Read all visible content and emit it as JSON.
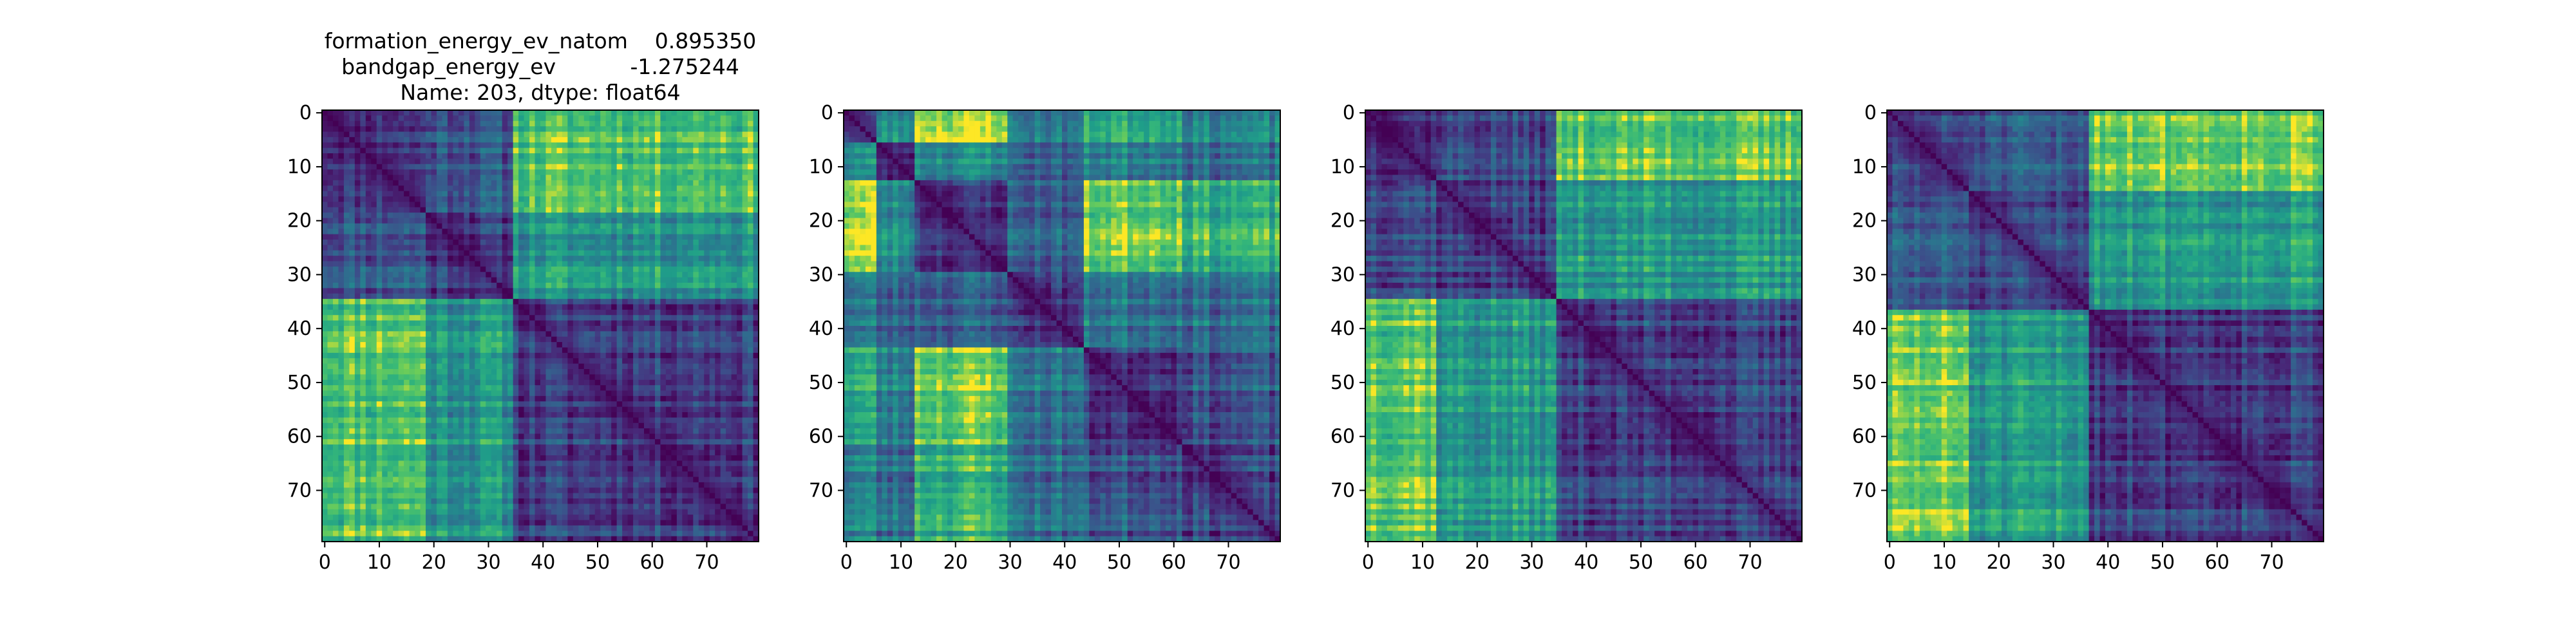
{
  "chart_data": [
    {
      "type": "heatmap",
      "title_lines": [
        "formation_energy_ev_natom    0.895350",
        "bandgap_energy_ev           -1.275244",
        "Name: 203, dtype: float64"
      ],
      "size": 80,
      "xlim": [
        0,
        79
      ],
      "ylim": [
        79,
        0
      ],
      "xticks": [
        0,
        10,
        20,
        30,
        40,
        50,
        60,
        70
      ],
      "yticks": [
        0,
        10,
        20,
        30,
        40,
        50,
        60,
        70
      ],
      "colormap": "viridis",
      "blocks": [
        0,
        19,
        35,
        80
      ],
      "block_levels": [
        [
          0.2,
          0.32,
          0.82
        ],
        [
          0.32,
          0.22,
          0.6
        ],
        [
          0.82,
          0.6,
          0.22
        ]
      ],
      "seed": 11
    },
    {
      "type": "heatmap",
      "title_lines": [],
      "size": 80,
      "xlim": [
        0,
        79
      ],
      "ylim": [
        79,
        0
      ],
      "xticks": [
        0,
        10,
        20,
        30,
        40,
        50,
        60,
        70
      ],
      "yticks": [
        0,
        10,
        20,
        30,
        40,
        50,
        60,
        70
      ],
      "colormap": "viridis",
      "blocks": [
        0,
        6,
        13,
        30,
        44,
        62,
        80
      ],
      "block_levels": [
        [
          0.25,
          0.55,
          0.95,
          0.45,
          0.7,
          0.5
        ],
        [
          0.55,
          0.2,
          0.55,
          0.35,
          0.5,
          0.4
        ],
        [
          0.95,
          0.55,
          0.2,
          0.35,
          0.88,
          0.72
        ],
        [
          0.45,
          0.35,
          0.35,
          0.2,
          0.45,
          0.4
        ],
        [
          0.7,
          0.5,
          0.88,
          0.45,
          0.22,
          0.3
        ],
        [
          0.5,
          0.4,
          0.72,
          0.4,
          0.3,
          0.22
        ]
      ],
      "seed": 23
    },
    {
      "type": "heatmap",
      "title_lines": [],
      "size": 80,
      "xlim": [
        0,
        79
      ],
      "ylim": [
        79,
        0
      ],
      "xticks": [
        0,
        10,
        20,
        30,
        40,
        50,
        60,
        70
      ],
      "yticks": [
        0,
        10,
        20,
        30,
        40,
        50,
        60,
        70
      ],
      "colormap": "viridis",
      "blocks": [
        0,
        13,
        35,
        80
      ],
      "block_levels": [
        [
          0.2,
          0.28,
          0.85
        ],
        [
          0.28,
          0.22,
          0.6
        ],
        [
          0.85,
          0.6,
          0.22
        ]
      ],
      "seed": 37
    },
    {
      "type": "heatmap",
      "title_lines": [],
      "size": 80,
      "xlim": [
        0,
        79
      ],
      "ylim": [
        79,
        0
      ],
      "xticks": [
        0,
        10,
        20,
        30,
        40,
        50,
        60,
        70
      ],
      "yticks": [
        0,
        10,
        20,
        30,
        40,
        50,
        60,
        70
      ],
      "colormap": "viridis",
      "blocks": [
        0,
        15,
        37,
        80
      ],
      "block_levels": [
        [
          0.2,
          0.28,
          0.85
        ],
        [
          0.28,
          0.22,
          0.6
        ],
        [
          0.85,
          0.6,
          0.22
        ]
      ],
      "seed": 51
    }
  ]
}
